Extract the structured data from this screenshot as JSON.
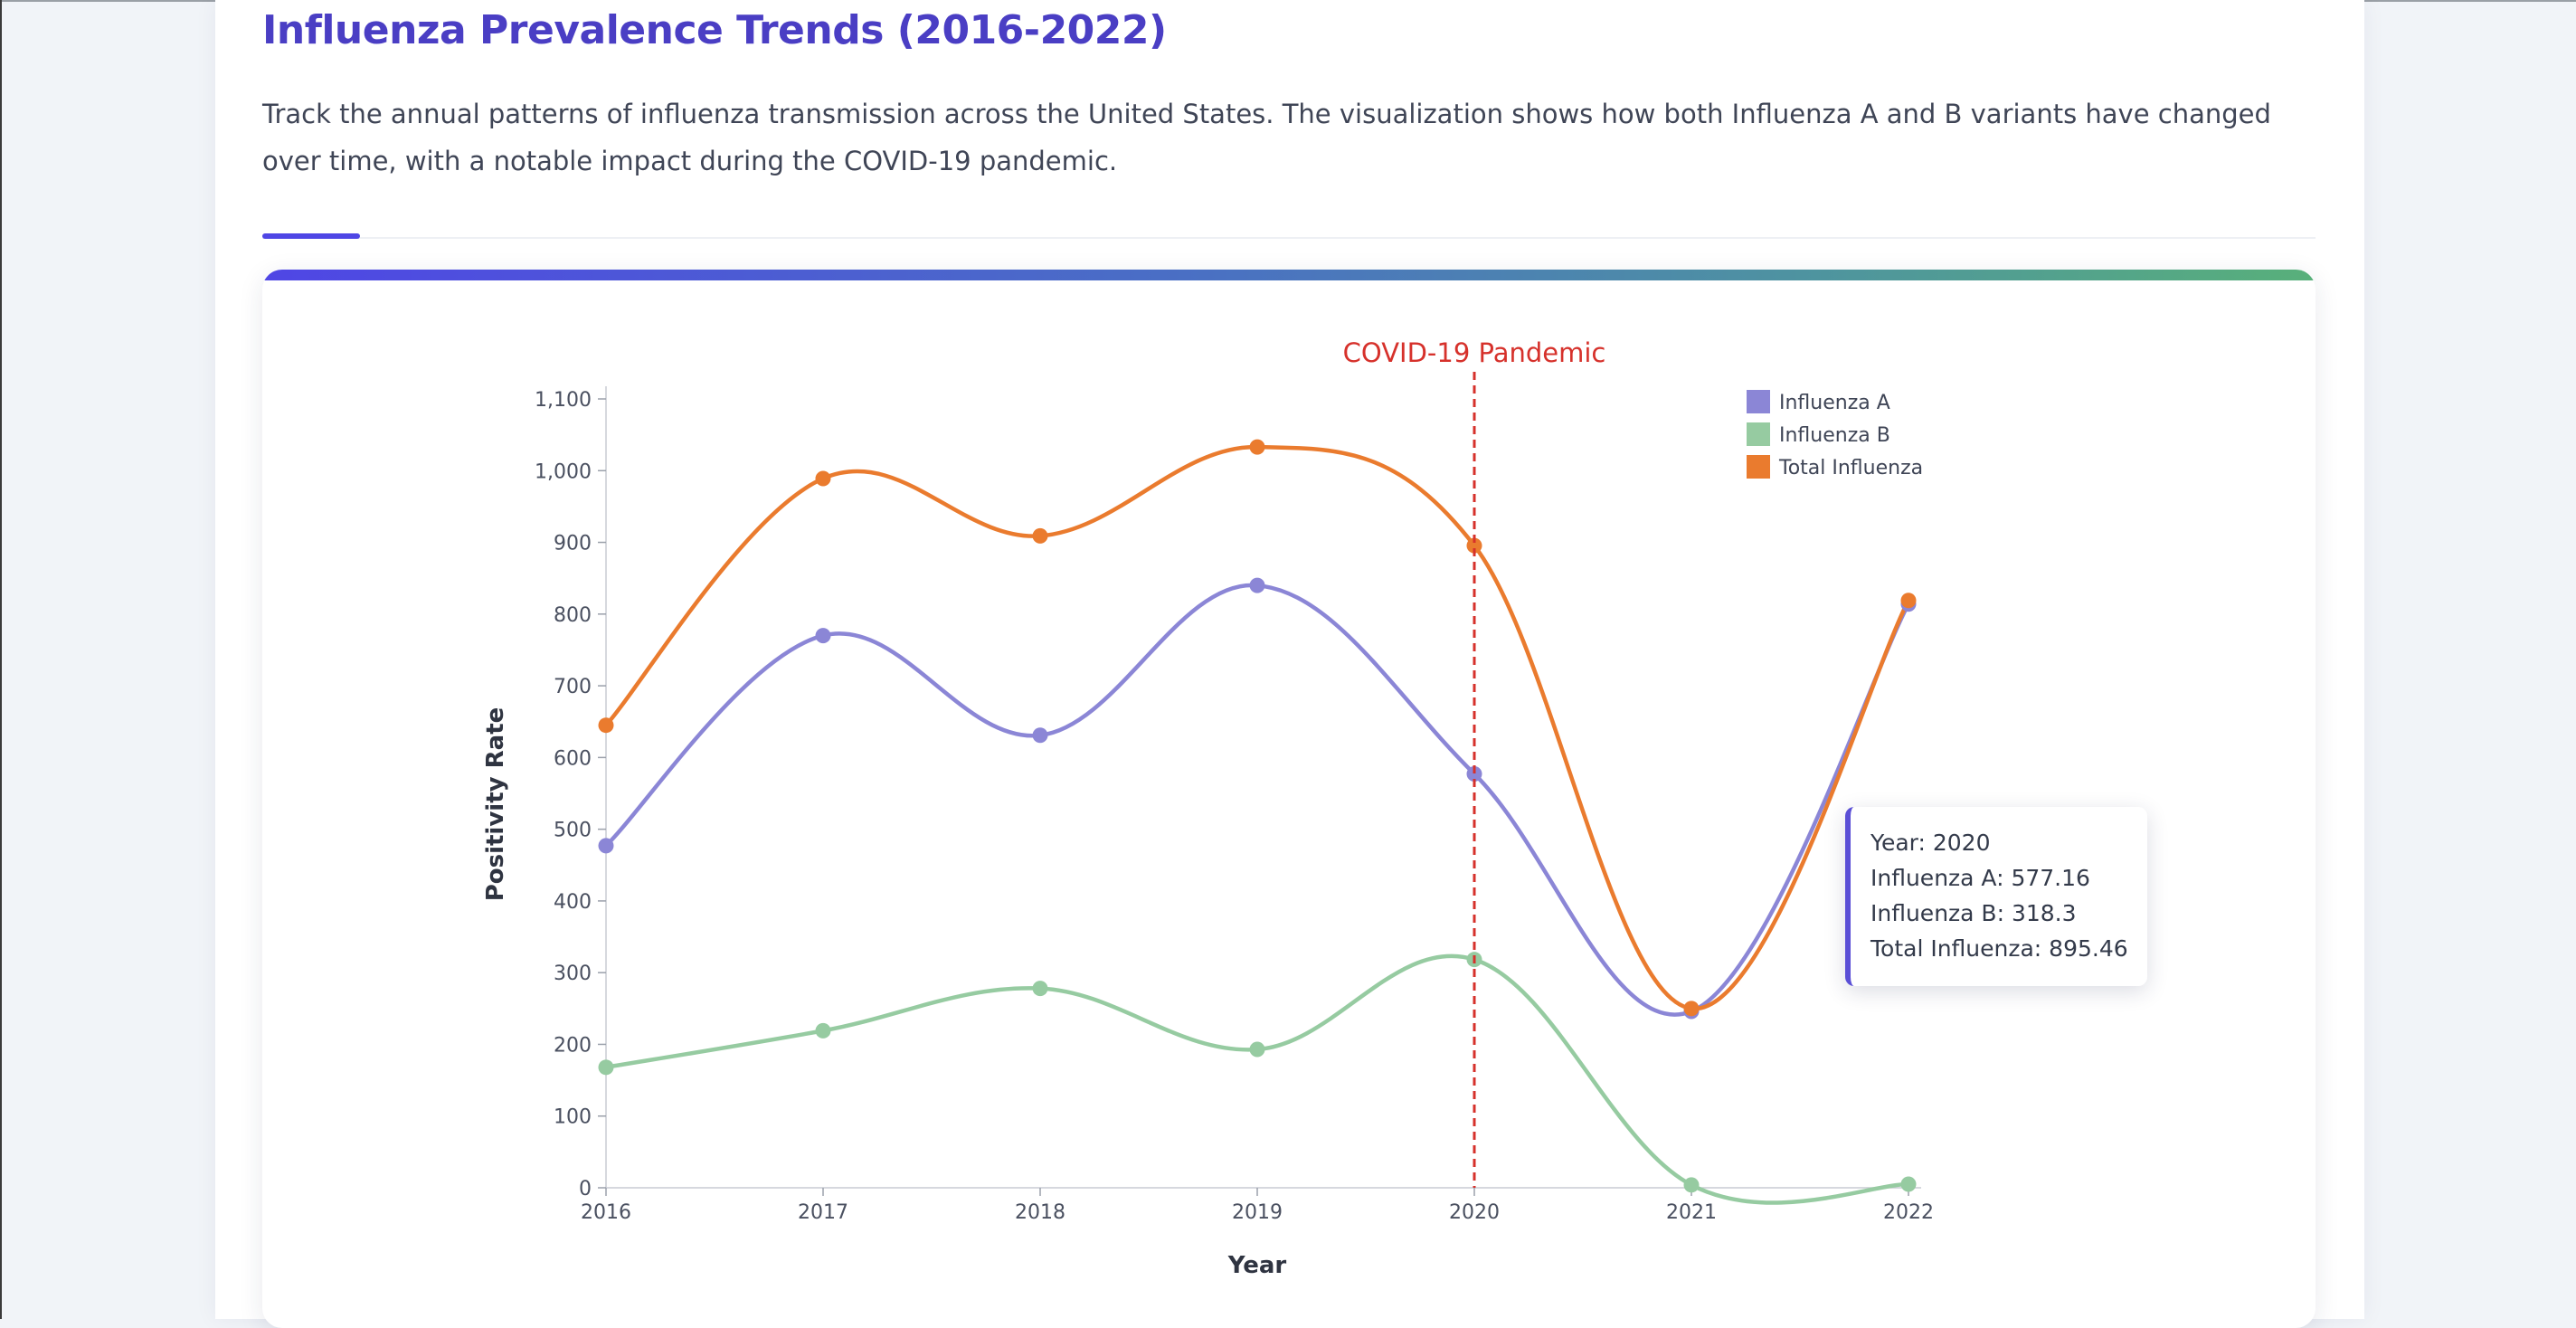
{
  "header": {
    "title": "Influenza Prevalence Trends (2016-2022)",
    "description": "Track the annual patterns of influenza transmission across the United States. The visualization shows how both Influenza A and B variants have changed over time, with a notable impact during the COVID-19 pandemic."
  },
  "tooltip": {
    "year": "Year: 2020",
    "influenza_a": "Influenza A: 577.16",
    "influenza_b": "Influenza B: 318.3",
    "total": "Total Influenza: 895.46"
  },
  "chart_data": {
    "type": "line",
    "x": [
      2016,
      2017,
      2018,
      2019,
      2020,
      2021,
      2022
    ],
    "x_tick_labels": [
      "2016",
      "2017",
      "2018",
      "2019",
      "2020",
      "2021",
      "2022"
    ],
    "xlabel": "Year",
    "ylabel": "Positivity Rate",
    "ylim": [
      0,
      1100
    ],
    "y_ticks": [
      0,
      100,
      200,
      300,
      400,
      500,
      600,
      700,
      800,
      900,
      1000,
      1100
    ],
    "y_tick_labels": [
      "0",
      "100",
      "200",
      "300",
      "400",
      "500",
      "600",
      "700",
      "800",
      "900",
      "1,000",
      "1,100"
    ],
    "grid": false,
    "legend_position": "top-right",
    "series": [
      {
        "name": "Influenza A",
        "color": "#8b86d6",
        "values": [
          477,
          770,
          631,
          840,
          577.16,
          246,
          814
        ]
      },
      {
        "name": "Influenza B",
        "color": "#96cba1",
        "values": [
          168,
          219,
          278,
          193,
          318.3,
          4,
          5
        ]
      },
      {
        "name": "Total Influenza",
        "color": "#ea7b2e",
        "values": [
          645,
          989,
          909,
          1033,
          895.46,
          250,
          819
        ]
      }
    ],
    "annotations": [
      {
        "type": "vertical-line",
        "x": 2020,
        "label": "COVID-19 Pandemic",
        "color": "#d6312b"
      }
    ],
    "highlighted_point": 2020
  }
}
